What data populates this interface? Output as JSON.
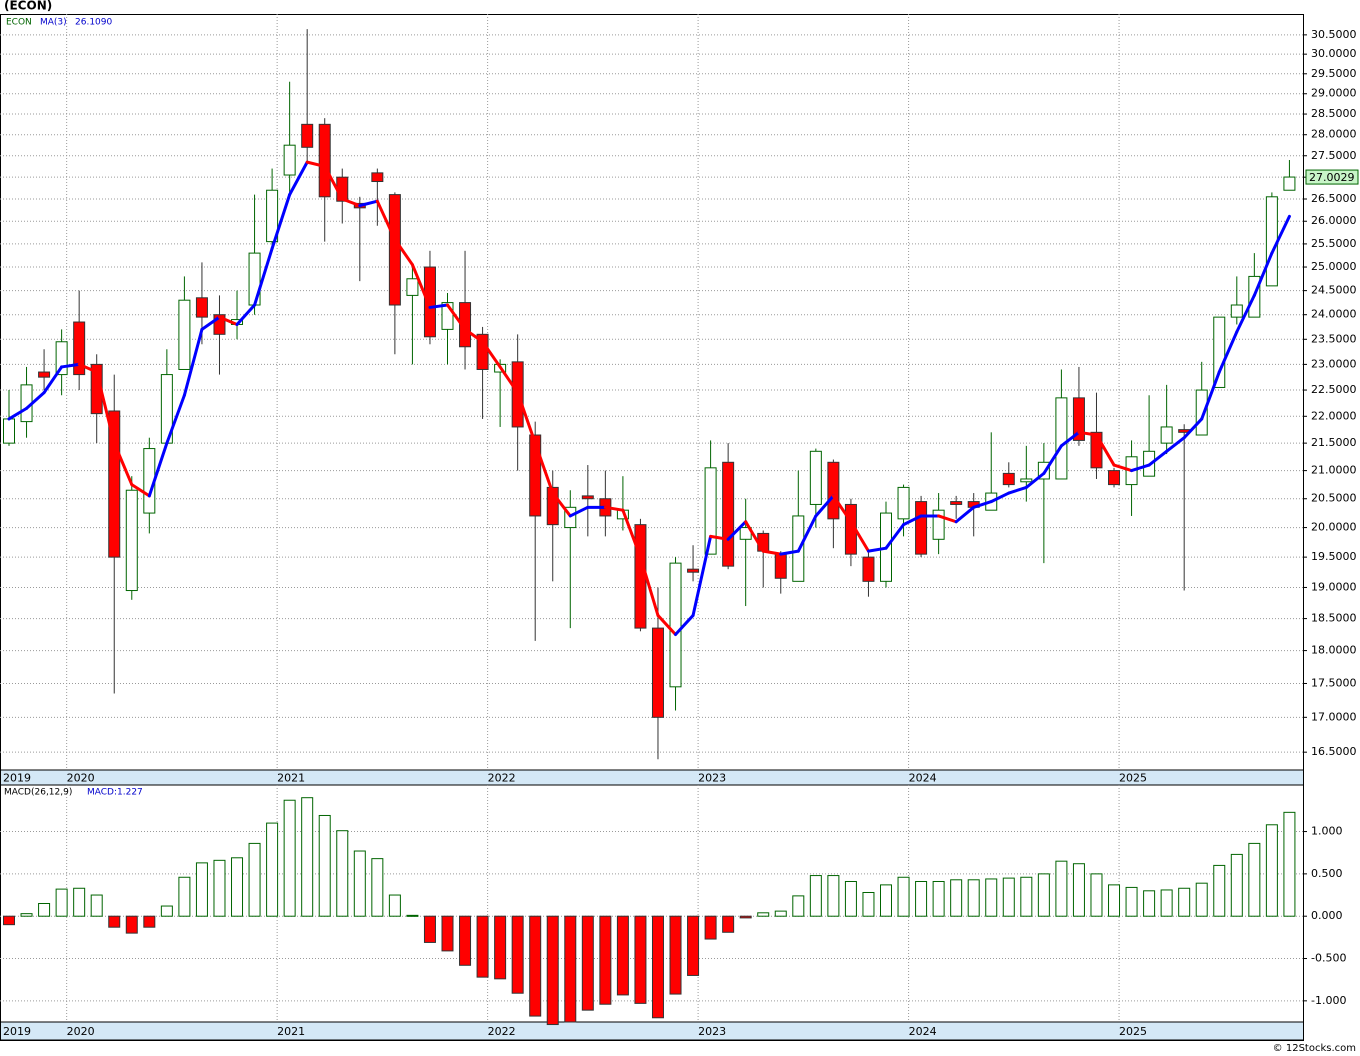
{
  "chart_data": [
    {
      "type": "candlestick",
      "title": "(ECON)",
      "symbol": "ECON",
      "log": true,
      "grid": true,
      "up_color": "#ffffff",
      "up_stroke": "#006400",
      "down_color": "#ff0000",
      "categories": [
        "2019",
        null,
        null,
        null,
        "2020",
        null,
        null,
        null,
        null,
        null,
        null,
        null,
        null,
        null,
        null,
        null,
        "2021",
        null,
        null,
        null,
        null,
        null,
        null,
        null,
        null,
        null,
        null,
        null,
        "2022",
        null,
        null,
        null,
        null,
        null,
        null,
        null,
        null,
        null,
        null,
        null,
        "2023",
        null,
        null,
        null,
        null,
        null,
        null,
        null,
        null,
        null,
        null,
        null,
        "2024",
        null,
        null,
        null,
        null,
        null,
        null,
        null,
        null,
        null,
        null,
        null,
        "2025",
        null,
        null,
        null,
        null,
        null,
        null,
        null,
        null,
        null
      ],
      "open": [
        21.5,
        21.9,
        22.85,
        22.8,
        23.85,
        23.0,
        22.1,
        18.95,
        20.25,
        21.5,
        22.9,
        24.35,
        24.0,
        23.8,
        24.2,
        25.55,
        27.05,
        28.25,
        28.25,
        27.0,
        26.4,
        27.1,
        26.6,
        24.4,
        25.0,
        23.7,
        24.25,
        23.6,
        22.85,
        23.05,
        21.65,
        20.7,
        20.0,
        20.55,
        20.5,
        20.15,
        20.05,
        18.35,
        17.45,
        19.3,
        19.55,
        21.15,
        19.8,
        19.9,
        19.55,
        19.1,
        20.4,
        21.15,
        20.4,
        19.5,
        19.1,
        20.15,
        20.45,
        19.8,
        20.45,
        20.45,
        20.3,
        20.95,
        20.8,
        20.85,
        20.85,
        22.35,
        21.7,
        21.0,
        20.75,
        20.9,
        21.5,
        21.75,
        21.65,
        22.55,
        23.95,
        23.95,
        24.6,
        26.7
      ],
      "high": [
        22.5,
        22.95,
        23.3,
        23.7,
        24.5,
        23.2,
        22.8,
        20.9,
        21.6,
        23.3,
        24.8,
        25.1,
        24.4,
        24.5,
        26.6,
        27.2,
        29.3,
        30.65,
        28.4,
        27.2,
        26.55,
        27.2,
        26.65,
        25.0,
        25.35,
        24.45,
        25.35,
        23.75,
        23.1,
        23.6,
        21.9,
        21.0,
        20.65,
        21.1,
        21.0,
        20.9,
        20.15,
        19.0,
        19.5,
        19.7,
        21.55,
        21.5,
        20.5,
        19.95,
        19.6,
        21.0,
        21.4,
        21.2,
        20.5,
        19.6,
        20.45,
        20.75,
        20.55,
        20.6,
        20.55,
        20.6,
        21.7,
        21.15,
        21.45,
        21.5,
        22.9,
        22.95,
        22.45,
        21.05,
        21.55,
        22.4,
        22.6,
        21.85,
        23.05,
        23.95,
        24.8,
        25.3,
        26.65,
        27.4
      ],
      "low": [
        21.45,
        21.6,
        22.5,
        22.4,
        22.5,
        21.5,
        17.35,
        18.8,
        19.9,
        21.5,
        22.9,
        23.4,
        22.8,
        23.5,
        24.0,
        25.4,
        26.6,
        27.3,
        25.55,
        25.95,
        24.7,
        25.9,
        23.2,
        23.0,
        23.4,
        23.0,
        22.9,
        21.95,
        21.8,
        21.0,
        18.15,
        19.1,
        18.35,
        19.85,
        19.85,
        19.95,
        18.3,
        16.4,
        17.1,
        19.1,
        19.55,
        19.3,
        18.7,
        19.0,
        18.9,
        19.1,
        20.0,
        19.65,
        19.35,
        18.85,
        19.0,
        19.85,
        19.5,
        19.55,
        20.15,
        19.85,
        20.3,
        20.7,
        20.45,
        19.4,
        20.85,
        21.45,
        20.85,
        20.7,
        20.2,
        20.9,
        21.3,
        18.95,
        21.65,
        22.55,
        23.8,
        23.95,
        24.6,
        26.7
      ],
      "close": [
        21.95,
        22.6,
        22.75,
        23.45,
        22.8,
        22.05,
        19.5,
        20.65,
        21.4,
        22.8,
        24.3,
        23.95,
        23.6,
        23.9,
        25.3,
        26.7,
        27.75,
        27.7,
        26.55,
        26.45,
        26.3,
        26.9,
        24.2,
        24.75,
        23.55,
        24.25,
        23.35,
        22.9,
        23.0,
        21.8,
        20.2,
        20.05,
        20.35,
        20.5,
        20.2,
        20.3,
        18.35,
        17.0,
        19.4,
        19.25,
        21.05,
        19.35,
        20.0,
        19.6,
        19.15,
        20.2,
        21.35,
        20.15,
        19.55,
        19.1,
        20.25,
        20.7,
        19.55,
        20.3,
        20.4,
        20.35,
        20.6,
        20.75,
        20.85,
        21.15,
        22.35,
        21.55,
        21.05,
        20.75,
        21.25,
        21.35,
        21.8,
        21.7,
        22.5,
        23.95,
        24.2,
        24.8,
        26.55,
        27.0029
      ],
      "close_label": "27.0029",
      "ma": {
        "name": "MA(3)",
        "up_color": "#0000ff",
        "down_color": "#ff0000",
        "last_label": "26.1090",
        "values": [
          21.95,
          22.15,
          22.45,
          22.95,
          23.0,
          22.85,
          21.5,
          20.75,
          20.55,
          21.5,
          22.4,
          23.7,
          23.95,
          23.8,
          24.2,
          25.4,
          26.6,
          27.35,
          27.25,
          26.5,
          26.35,
          26.45,
          25.6,
          25.05,
          24.15,
          24.2,
          23.7,
          23.45,
          22.95,
          22.45,
          21.5,
          20.6,
          20.2,
          20.35,
          20.35,
          20.3,
          19.5,
          18.55,
          18.25,
          18.55,
          19.85,
          19.8,
          20.1,
          19.6,
          19.55,
          19.6,
          20.2,
          20.55,
          20.1,
          19.6,
          19.65,
          20.05,
          20.2,
          20.2,
          20.1,
          20.35,
          20.45,
          20.6,
          20.7,
          20.95,
          21.45,
          21.7,
          21.65,
          21.1,
          21.0,
          21.1,
          21.35,
          21.6,
          21.95,
          22.85,
          23.65,
          24.4,
          25.3,
          26.109
        ]
      },
      "ylim": [
        16.25,
        31.05
      ],
      "yticks": [
        {
          "value": 16.5,
          "label": "16.5000"
        },
        {
          "value": 17,
          "label": "17.0000"
        },
        {
          "value": 17.5,
          "label": "17.5000"
        },
        {
          "value": 18,
          "label": "18.0000"
        },
        {
          "value": 18.5,
          "label": "18.5000"
        },
        {
          "value": 19,
          "label": "19.0000"
        },
        {
          "value": 19.5,
          "label": "19.5000"
        },
        {
          "value": 20,
          "label": "20.0000"
        },
        {
          "value": 20.5,
          "label": "20.5000"
        },
        {
          "value": 21,
          "label": "21.0000"
        },
        {
          "value": 21.5,
          "label": "21.5000"
        },
        {
          "value": 22,
          "label": "22.0000"
        },
        {
          "value": 22.5,
          "label": "22.5000"
        },
        {
          "value": 23,
          "label": "23.0000"
        },
        {
          "value": 23.5,
          "label": "23.5000"
        },
        {
          "value": 24,
          "label": "24.0000"
        },
        {
          "value": 24.5,
          "label": "24.5000"
        },
        {
          "value": 25,
          "label": "25.0000"
        },
        {
          "value": 25.5,
          "label": "25.5000"
        },
        {
          "value": 26,
          "label": "26.0000"
        },
        {
          "value": 26.5,
          "label": "26.5000"
        },
        {
          "value": 27,
          "label": "27.0000"
        },
        {
          "value": 27.5,
          "label": "27.5000"
        },
        {
          "value": 28,
          "label": "28.0000"
        },
        {
          "value": 28.5,
          "label": "28.5000"
        },
        {
          "value": 29,
          "label": "29.0000"
        },
        {
          "value": 29.5,
          "label": "29.5000"
        },
        {
          "value": 30,
          "label": "30.0000"
        },
        {
          "value": 30.5,
          "label": "30.5000"
        }
      ]
    },
    {
      "type": "bar",
      "title": "MACD(26,12,9)",
      "value_label": "MACD:1.227",
      "grid": true,
      "up_color": "#ffffff",
      "up_stroke": "#006400",
      "down_color": "#ff0000",
      "categories": [
        "2019",
        null,
        null,
        null,
        "2020",
        null,
        null,
        null,
        null,
        null,
        null,
        null,
        null,
        null,
        null,
        null,
        "2021",
        null,
        null,
        null,
        null,
        null,
        null,
        null,
        null,
        null,
        null,
        null,
        "2022",
        null,
        null,
        null,
        null,
        null,
        null,
        null,
        null,
        null,
        null,
        null,
        "2023",
        null,
        null,
        null,
        null,
        null,
        null,
        null,
        null,
        null,
        null,
        null,
        "2024",
        null,
        null,
        null,
        null,
        null,
        null,
        null,
        null,
        null,
        null,
        null,
        "2025",
        null,
        null,
        null,
        null,
        null,
        null,
        null,
        null,
        null
      ],
      "values": [
        -0.1,
        0.03,
        0.15,
        0.32,
        0.33,
        0.25,
        -0.13,
        -0.2,
        -0.13,
        0.12,
        0.46,
        0.63,
        0.66,
        0.69,
        0.86,
        1.1,
        1.37,
        1.4,
        1.19,
        1.01,
        0.77,
        0.68,
        0.25,
        0.01,
        -0.31,
        -0.41,
        -0.58,
        -0.72,
        -0.74,
        -0.91,
        -1.18,
        -1.28,
        -1.25,
        -1.11,
        -1.04,
        -0.93,
        -1.03,
        -1.2,
        -0.92,
        -0.7,
        -0.27,
        -0.19,
        -0.02,
        0.04,
        0.06,
        0.24,
        0.48,
        0.48,
        0.41,
        0.28,
        0.37,
        0.46,
        0.41,
        0.41,
        0.43,
        0.43,
        0.44,
        0.45,
        0.46,
        0.5,
        0.65,
        0.62,
        0.5,
        0.37,
        0.34,
        0.3,
        0.31,
        0.33,
        0.39,
        0.6,
        0.73,
        0.86,
        1.08,
        1.227
      ],
      "ylim": [
        -1.25,
        1.55
      ],
      "yticks": [
        {
          "value": 1,
          "label": "1.000"
        },
        {
          "value": 0.5,
          "label": "0.500"
        },
        {
          "value": 0,
          "label": "0.000"
        },
        {
          "value": -0.5,
          "label": "-0.500"
        },
        {
          "value": -1,
          "label": "-1.000"
        }
      ]
    }
  ],
  "footer": "© 12Stocks.com"
}
